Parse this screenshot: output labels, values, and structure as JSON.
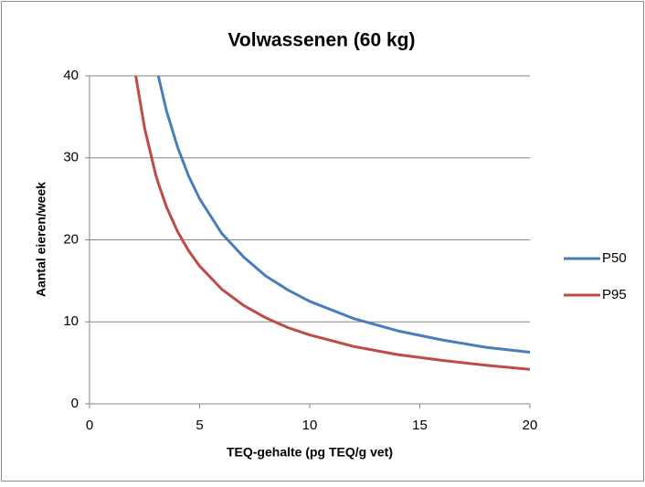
{
  "chart_data": {
    "type": "line",
    "title": "Volwassenen (60 kg)",
    "x_label": "TEQ-gehalte (pg TEQ/g vet)",
    "y_label": "Aantal eieren/week",
    "x": [
      2.1,
      2.5,
      3,
      3.125,
      3.5,
      4,
      4.5,
      5,
      6,
      7,
      8,
      9,
      10,
      12,
      14,
      16,
      18,
      20
    ],
    "series": [
      {
        "name": "P50",
        "color": "#4a7ebb",
        "values": [
          null,
          null,
          null,
          40,
          35.7,
          31.3,
          27.8,
          25,
          20.8,
          17.9,
          15.6,
          13.9,
          12.5,
          10.4,
          8.9,
          7.8,
          6.9,
          6.3
        ]
      },
      {
        "name": "P95",
        "color": "#be4b48",
        "values": [
          40,
          33.6,
          28,
          26.9,
          24,
          21,
          18.7,
          16.8,
          14,
          12,
          10.5,
          9.3,
          8.4,
          7,
          6,
          5.3,
          4.7,
          4.2
        ]
      }
    ],
    "xlim": [
      0,
      20
    ],
    "xticks": [
      0,
      5,
      10,
      15,
      20
    ],
    "ylim": [
      0,
      40
    ],
    "yticks": [
      0,
      10,
      20,
      30,
      40
    ],
    "grid": true,
    "legend": "right"
  }
}
